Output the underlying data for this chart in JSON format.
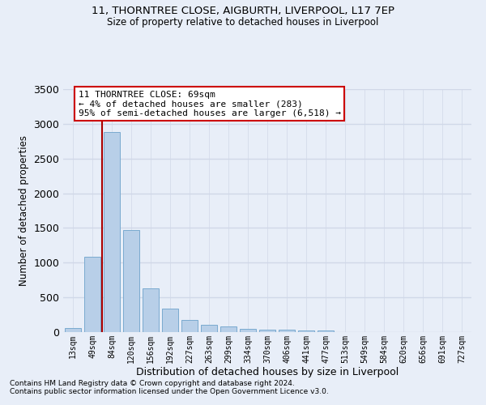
{
  "title1": "11, THORNTREE CLOSE, AIGBURTH, LIVERPOOL, L17 7EP",
  "title2": "Size of property relative to detached houses in Liverpool",
  "xlabel": "Distribution of detached houses by size in Liverpool",
  "ylabel": "Number of detached properties",
  "footnote1": "Contains HM Land Registry data © Crown copyright and database right 2024.",
  "footnote2": "Contains public sector information licensed under the Open Government Licence v3.0.",
  "bar_labels": [
    "13sqm",
    "49sqm",
    "84sqm",
    "120sqm",
    "156sqm",
    "192sqm",
    "227sqm",
    "263sqm",
    "299sqm",
    "334sqm",
    "370sqm",
    "406sqm",
    "441sqm",
    "477sqm",
    "513sqm",
    "549sqm",
    "584sqm",
    "620sqm",
    "656sqm",
    "691sqm",
    "727sqm"
  ],
  "bar_values": [
    55,
    1090,
    2880,
    1470,
    630,
    340,
    175,
    100,
    80,
    50,
    35,
    30,
    25,
    20,
    5,
    2,
    1,
    1,
    0,
    0,
    0
  ],
  "bar_color": "#b8cfe8",
  "bar_edge_color": "#7aaad0",
  "ylim": [
    0,
    3500
  ],
  "yticks": [
    0,
    500,
    1000,
    1500,
    2000,
    2500,
    3000,
    3500
  ],
  "vline_x": 1.5,
  "vline_color": "#aa0000",
  "annotation_line1": "11 THORNTREE CLOSE: 69sqm",
  "annotation_line2": "← 4% of detached houses are smaller (283)",
  "annotation_line3": "95% of semi-detached houses are larger (6,518) →",
  "annotation_box_color": "#ffffff",
  "annotation_box_edge": "#cc0000",
  "bg_color": "#e8eef8",
  "plot_bg_color": "#e8eef8",
  "grid_color": "#d0d8e8"
}
